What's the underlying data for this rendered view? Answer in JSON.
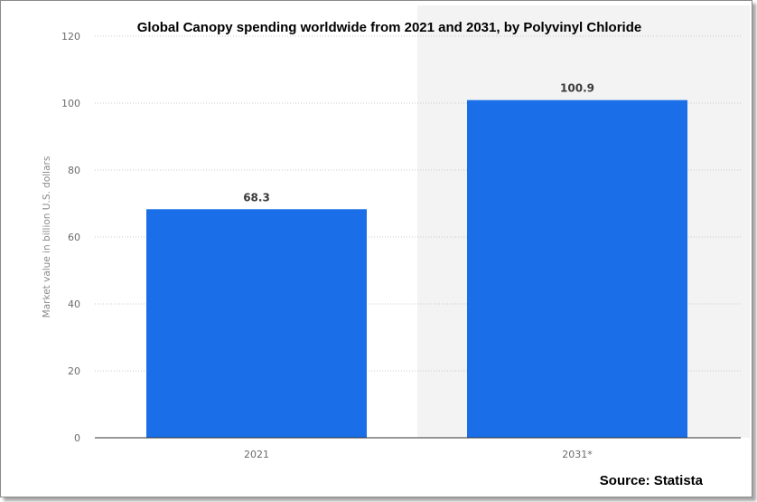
{
  "chart_data": {
    "type": "bar",
    "title": "Global Canopy spending worldwide from 2021 and 2031, by Polyvinyl Chloride",
    "ylabel": "Market value in billion U.S. dollars",
    "xlabel": "",
    "categories": [
      "2021",
      "2031*"
    ],
    "values": [
      68.3,
      100.9
    ],
    "value_labels": [
      "68.3",
      "100.9"
    ],
    "ylim": [
      0,
      120
    ],
    "yticks": [
      0,
      20,
      40,
      60,
      80,
      100,
      120
    ],
    "grid": "horizontal dotted",
    "bar_color": "#1a6ee8",
    "forecast_shade_color": "#f3f3f3",
    "source": "Source: Statista"
  }
}
